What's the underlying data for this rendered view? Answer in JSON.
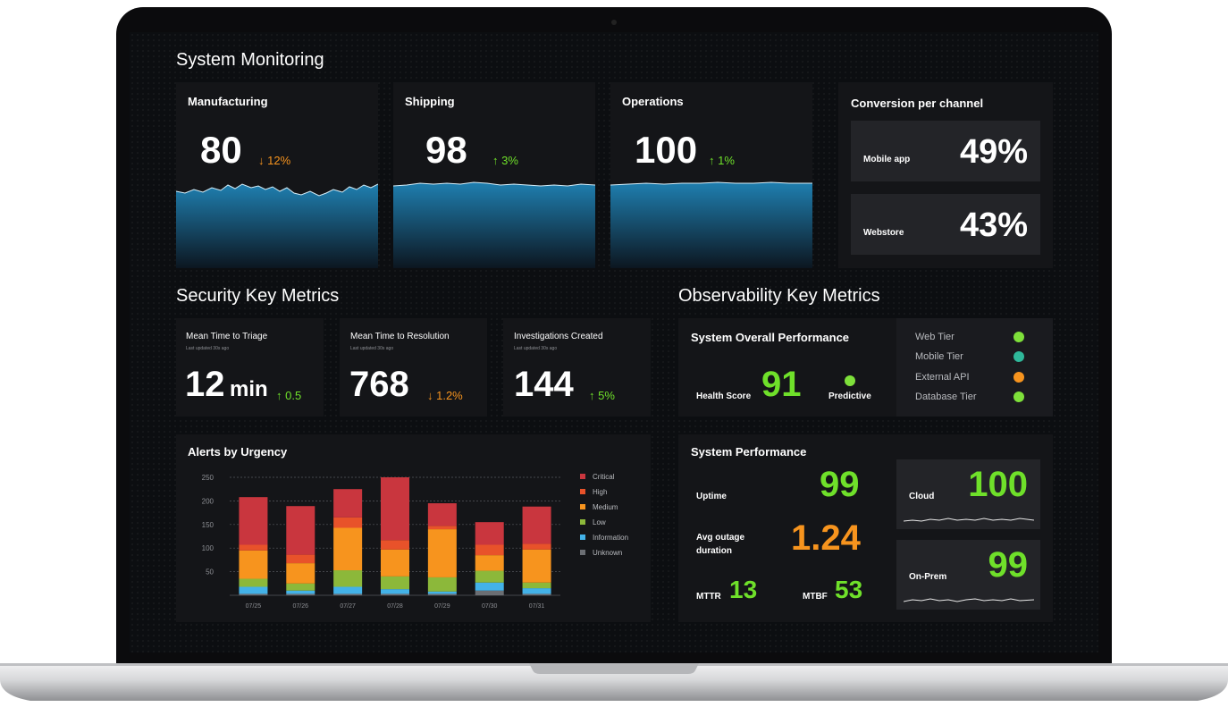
{
  "dashboard": {
    "title": "System Monitoring",
    "manufacturing": {
      "title": "Manufacturing",
      "value": "80",
      "delta": "↓ 12%"
    },
    "shipping": {
      "title": "Shipping",
      "value": "98",
      "delta": "↑ 3%"
    },
    "operations": {
      "title": "Operations",
      "value": "100",
      "delta": "↑ 1%"
    },
    "conversion": {
      "title": "Conversion per channel",
      "mobile": {
        "label": "Mobile app",
        "value": "49%"
      },
      "webstore": {
        "label": "Webstore",
        "value": "43%"
      }
    },
    "security": {
      "title": "Security Key Metrics",
      "triage": {
        "title": "Mean Time to Triage",
        "updated": "Last updated 30s ago",
        "value": "12",
        "unit": "min",
        "delta": "↑ 0.5"
      },
      "resolution": {
        "title": "Mean Time to Resolution",
        "updated": "Last updated 30s ago",
        "value": "768",
        "delta": "↓ 1.2%"
      },
      "investigations": {
        "title": "Investigations Created",
        "updated": "Last updated 30s ago",
        "value": "144",
        "delta": "↑ 5%"
      }
    },
    "observability": {
      "title": "Observability Key Metrics",
      "overall": {
        "title": "System Overall Performance",
        "health_label": "Health Score",
        "health_value": "91",
        "predictive_label": "Predictive"
      },
      "tiers": [
        {
          "name": "Web Tier",
          "color": "#7ee03a"
        },
        {
          "name": "Mobile Tier",
          "color": "#2fb89a"
        },
        {
          "name": "External API",
          "color": "#f7941e"
        },
        {
          "name": "Database Tier",
          "color": "#7ee03a"
        }
      ],
      "system_performance": {
        "title": "System Performance",
        "uptime_label": "Uptime",
        "uptime_value": "99",
        "outage_label_1": "Avg outage",
        "outage_label_2": "duration",
        "outage_value": "1.24",
        "mttr_label": "MTTR",
        "mttr_value": "13",
        "mtbf_label": "MTBF",
        "mtbf_value": "53",
        "cloud_label": "Cloud",
        "cloud_value": "100",
        "onprem_label": "On-Prem",
        "onprem_value": "99"
      }
    },
    "alerts": {
      "title": "Alerts by Urgency"
    }
  },
  "colors": {
    "critical": "#c9363e",
    "high": "#e8522a",
    "medium": "#f7941e",
    "low": "#8cb83a",
    "information": "#43b2e8",
    "unknown": "#6b6e73",
    "accent_green": "#6fe02a",
    "accent_orange": "#f7941e"
  },
  "chart_data": {
    "type": "bar",
    "title": "Alerts by Urgency",
    "stacked": true,
    "categories": [
      "07/25",
      "07/26",
      "07/27",
      "07/28",
      "07/29",
      "07/30",
      "07/31"
    ],
    "ylim": [
      0,
      250
    ],
    "yticks": [
      50,
      100,
      150,
      200,
      250
    ],
    "grid": true,
    "legend_position": "right",
    "series": [
      {
        "name": "Unknown",
        "color": "#6b6e73",
        "values": [
          3,
          3,
          3,
          3,
          3,
          10,
          3
        ]
      },
      {
        "name": "Information",
        "color": "#43b2e8",
        "values": [
          15,
          7,
          15,
          10,
          5,
          17,
          12
        ]
      },
      {
        "name": "Low",
        "color": "#8cb83a",
        "values": [
          17,
          15,
          35,
          27,
          30,
          25,
          12
        ]
      },
      {
        "name": "Medium",
        "color": "#f7941e",
        "values": [
          60,
          43,
          90,
          57,
          102,
          33,
          70
        ]
      },
      {
        "name": "High",
        "color": "#e8522a",
        "values": [
          12,
          18,
          22,
          20,
          7,
          22,
          12
        ]
      },
      {
        "name": "Critical",
        "color": "#c9363e",
        "values": [
          101,
          103,
          60,
          133,
          48,
          48,
          79
        ]
      }
    ]
  }
}
